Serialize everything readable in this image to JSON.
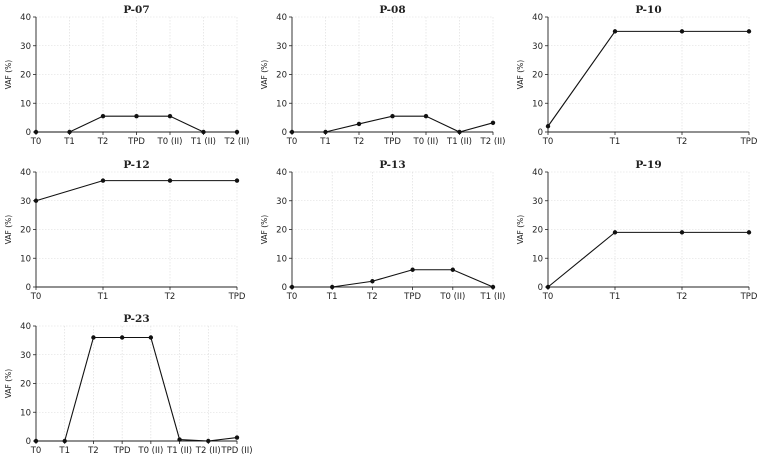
{
  "chart_data": [
    {
      "type": "line",
      "title": "P-07",
      "ylabel": "VAF (%)",
      "ylim": [
        0,
        40
      ],
      "yticks": [
        "0",
        "10",
        "20",
        "30",
        "40"
      ],
      "categories": [
        "T0",
        "T1",
        "T2",
        "TPD",
        "T0 (II)",
        "T1 (II)",
        "T2 (II)"
      ],
      "values": [
        0,
        0,
        5.5,
        5.5,
        5.5,
        0,
        0
      ],
      "grid": true
    },
    {
      "type": "line",
      "title": "P-08",
      "ylabel": "VAF (%)",
      "ylim": [
        0,
        40
      ],
      "yticks": [
        "0",
        "10",
        "20",
        "30",
        "40"
      ],
      "categories": [
        "T0",
        "T1",
        "T2",
        "TPD",
        "T0 (II)",
        "T1 (II)",
        "T2 (II)"
      ],
      "values": [
        0,
        0,
        2.8,
        5.5,
        5.5,
        0,
        3.2
      ],
      "grid": true
    },
    {
      "type": "line",
      "title": "P-10",
      "ylabel": "VAF (%)",
      "ylim": [
        0,
        40
      ],
      "yticks": [
        "0",
        "10",
        "20",
        "30",
        "40"
      ],
      "categories": [
        "T0",
        "T1",
        "T2",
        "TPD"
      ],
      "values": [
        2,
        35,
        35,
        35
      ],
      "grid": true
    },
    {
      "type": "line",
      "title": "P-12",
      "ylabel": "VAF (%)",
      "ylim": [
        0,
        40
      ],
      "yticks": [
        "0",
        "10",
        "20",
        "30",
        "40"
      ],
      "categories": [
        "T0",
        "T1",
        "T2",
        "TPD"
      ],
      "values": [
        30,
        37,
        37,
        37
      ],
      "grid": true
    },
    {
      "type": "line",
      "title": "P-13",
      "ylabel": "VAF (%)",
      "ylim": [
        0,
        40
      ],
      "yticks": [
        "0",
        "10",
        "20",
        "30",
        "40"
      ],
      "categories": [
        "T0",
        "T1",
        "T2",
        "TPD",
        "T0 (II)",
        "T1 (II)"
      ],
      "values": [
        0,
        0,
        2,
        6,
        6,
        0
      ],
      "grid": true
    },
    {
      "type": "line",
      "title": "P-19",
      "ylabel": "VAF (%)",
      "ylim": [
        0,
        40
      ],
      "yticks": [
        "0",
        "10",
        "20",
        "30",
        "40"
      ],
      "categories": [
        "T0",
        "T1",
        "T2",
        "TPD"
      ],
      "values": [
        0,
        19,
        19,
        19
      ],
      "grid": true
    },
    {
      "type": "line",
      "title": "P-23",
      "ylabel": "VAF (%)",
      "ylim": [
        0,
        40
      ],
      "yticks": [
        "0",
        "10",
        "20",
        "30",
        "40"
      ],
      "categories": [
        "T0",
        "T1",
        "T2",
        "TPD",
        "T0 (II)",
        "T1 (II)",
        "T2 (II)",
        "TPD (II)"
      ],
      "values": [
        0,
        0,
        36,
        36,
        36,
        0.5,
        0,
        1.2
      ],
      "grid": true
    }
  ]
}
